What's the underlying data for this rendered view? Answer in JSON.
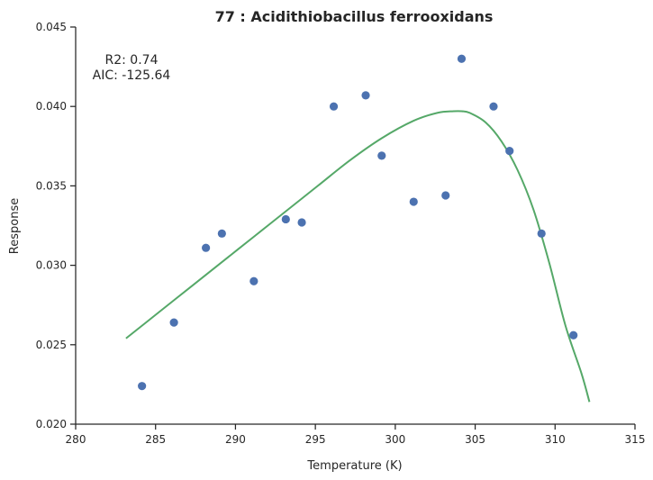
{
  "chart_data": {
    "type": "scatter",
    "title": "77 : Acidithiobacillus ferrooxidans",
    "xlabel": "Temperature (K)",
    "ylabel": "Response",
    "xlim": [
      280,
      315
    ],
    "ylim": [
      0.02,
      0.045
    ],
    "xticks": [
      280,
      285,
      290,
      295,
      300,
      305,
      310,
      315
    ],
    "xtick_labels": [
      "280",
      "285",
      "290",
      "295",
      "300",
      "305",
      "310",
      "315"
    ],
    "yticks": [
      0.02,
      0.025,
      0.03,
      0.035,
      0.04,
      0.045
    ],
    "ytick_labels": [
      "0.020",
      "0.025",
      "0.030",
      "0.035",
      "0.040",
      "0.045"
    ],
    "annotations": [
      "R2: 0.74",
      "AIC: -125.64"
    ],
    "grid": false,
    "points": {
      "color": "#4c72b0",
      "x": [
        284.15,
        286.15,
        288.15,
        289.15,
        291.15,
        293.15,
        294.15,
        296.15,
        298.15,
        299.15,
        301.15,
        303.15,
        304.15,
        306.15,
        307.15,
        309.15,
        311.15
      ],
      "y": [
        0.0224,
        0.0264,
        0.0311,
        0.032,
        0.029,
        0.0329,
        0.0327,
        0.04,
        0.0407,
        0.0369,
        0.034,
        0.0344,
        0.043,
        0.04,
        0.0372,
        0.032,
        0.0256
      ]
    },
    "fit": {
      "color": "#55a868",
      "x": [
        283.15,
        285.15,
        287.15,
        289.15,
        291.15,
        293.15,
        295.15,
        297.15,
        299.15,
        301.15,
        302.65,
        303.65,
        304.15,
        304.65,
        305.65,
        306.65,
        307.65,
        308.65,
        309.65,
        310.65,
        311.65,
        312.15
      ],
      "y": [
        0.0254,
        0.027,
        0.0286,
        0.0302,
        0.0318,
        0.0334,
        0.035,
        0.0366,
        0.038,
        0.0391,
        0.0396,
        0.0397,
        0.0397,
        0.0396,
        0.039,
        0.0378,
        0.036,
        0.0335,
        0.0301,
        0.0262,
        0.0232,
        0.0214
      ]
    }
  }
}
